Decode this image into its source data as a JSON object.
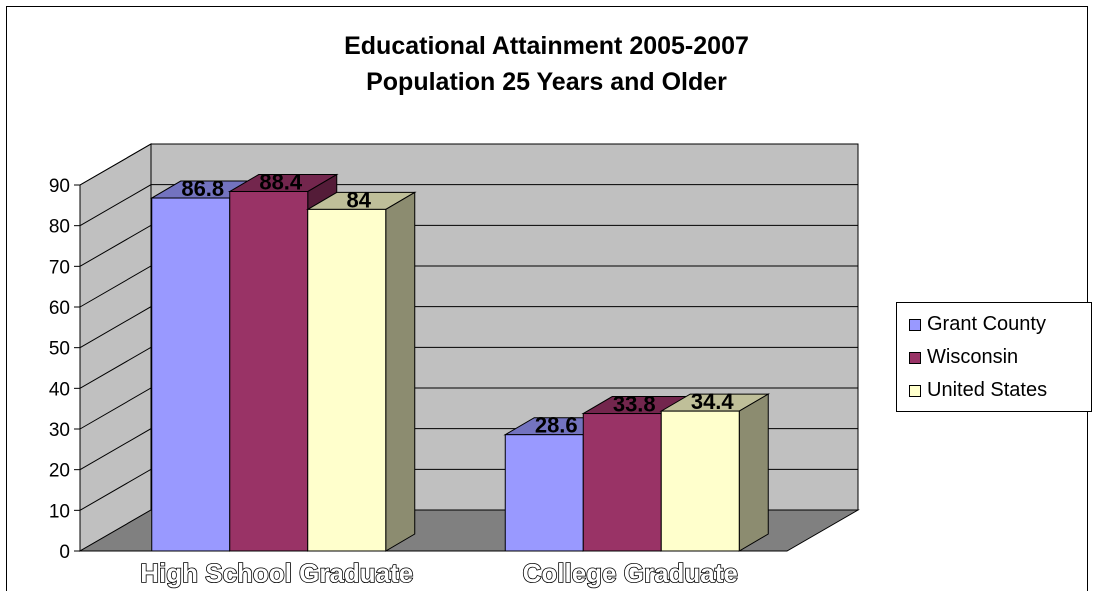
{
  "chart_data": {
    "type": "bar",
    "title": [
      "Educational Attainment 2005-2007",
      "Population 25 Years and Older"
    ],
    "categories": [
      "High School Graduate",
      "College Graduate"
    ],
    "series": [
      {
        "name": "Grant County",
        "values": [
          86.8,
          28.6
        ],
        "color": "#9999FF"
      },
      {
        "name": "Wisconsin",
        "values": [
          88.4,
          33.8
        ],
        "color": "#993366"
      },
      {
        "name": "United States",
        "values": [
          84,
          34.4
        ],
        "color": "#FFFFCC"
      }
    ],
    "ylim": [
      0,
      90
    ],
    "yticks": [
      0,
      10,
      20,
      30,
      40,
      50,
      60,
      70,
      80,
      90
    ],
    "grid": true,
    "legend": "right",
    "style": "3d-clustered-column",
    "wall_color": "#C0C0C0",
    "floor_color": "#808080"
  }
}
